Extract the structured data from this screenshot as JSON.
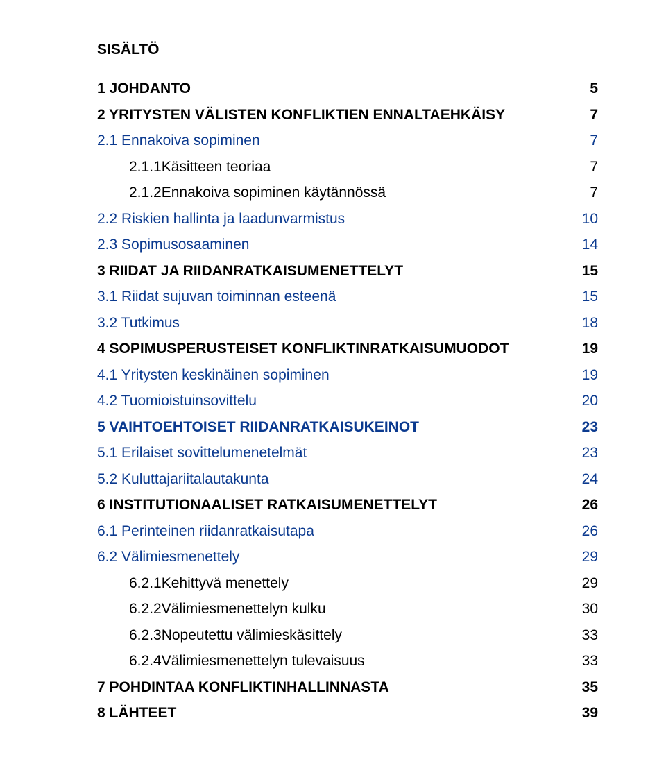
{
  "title": "SISÄLTÖ",
  "text_color": "#000000",
  "link_color": "#0b3a8f",
  "background_color": "#ffffff",
  "font_family": "Arial",
  "font_size_pt": 16,
  "entries": [
    {
      "level": 0,
      "label": "1   JOHDANTO",
      "page": "5",
      "class": "lvl0"
    },
    {
      "level": 0,
      "label": "2   YRITYSTEN VÄLISTEN KONFLIKTIEN ENNALTAEHKÄISY",
      "page": "7",
      "class": "lvl0"
    },
    {
      "level": 1,
      "label": "2.1 Ennakoiva sopiminen",
      "page": "7",
      "class": "lvl1 blue"
    },
    {
      "level": 2,
      "label": "2.1.1Käsitteen teoriaa",
      "page": "7",
      "class": "lvl2"
    },
    {
      "level": 2,
      "label": "2.1.2Ennakoiva sopiminen käytännössä",
      "page": "7",
      "class": "lvl2"
    },
    {
      "level": 1,
      "label": "2.2 Riskien hallinta ja laadunvarmistus",
      "page": "10",
      "class": "lvl1 blue"
    },
    {
      "level": 1,
      "label": "2.3 Sopimusosaaminen",
      "page": "14",
      "class": "lvl1 blue"
    },
    {
      "level": 0,
      "label": "3   RIIDAT JA RIIDANRATKAISUMENETTELYT",
      "page": "15",
      "class": "lvl0"
    },
    {
      "level": 1,
      "label": "3.1 Riidat sujuvan toiminnan esteenä",
      "page": "15",
      "class": "lvl1 blue"
    },
    {
      "level": 1,
      "label": "3.2 Tutkimus",
      "page": "18",
      "class": "lvl1 blue"
    },
    {
      "level": 0,
      "label": "4   SOPIMUSPERUSTEISET KONFLIKTINRATKAISUMUODOT",
      "page": "19",
      "class": "lvl0"
    },
    {
      "level": 1,
      "label": "4.1 Yritysten keskinäinen sopiminen",
      "page": "19",
      "class": "lvl1 blue"
    },
    {
      "level": 1,
      "label": "4.2 Tuomioistuinsovittelu",
      "page": "20",
      "class": "lvl1 blue"
    },
    {
      "level": 0,
      "label": "5   VAIHTOEHTOISET RIIDANRATKAISUKEINOT",
      "page": "23",
      "class": "lvl0 blue-bold"
    },
    {
      "level": 1,
      "label": "5.1 Erilaiset sovittelumenetelmät",
      "page": "23",
      "class": "lvl1 blue"
    },
    {
      "level": 1,
      "label": "5.2 Kuluttajariitalautakunta",
      "page": "24",
      "class": "lvl1 blue"
    },
    {
      "level": 0,
      "label": "6   INSTITUTIONAALISET RATKAISUMENETTELYT",
      "page": "26",
      "class": "lvl0"
    },
    {
      "level": 1,
      "label": "6.1 Perinteinen riidanratkaisutapa",
      "page": "26",
      "class": "lvl1 blue"
    },
    {
      "level": 1,
      "label": "6.2 Välimiesmenettely",
      "page": "29",
      "class": "lvl1 blue"
    },
    {
      "level": 2,
      "label": "6.2.1Kehittyvä menettely",
      "page": "29",
      "class": "lvl2"
    },
    {
      "level": 2,
      "label": "6.2.2Välimiesmenettelyn kulku",
      "page": "30",
      "class": "lvl2"
    },
    {
      "level": 2,
      "label": "6.2.3Nopeutettu välimieskäsittely",
      "page": "33",
      "class": "lvl2"
    },
    {
      "level": 2,
      "label": "6.2.4Välimiesmenettelyn tulevaisuus",
      "page": "33",
      "class": "lvl2"
    },
    {
      "level": 0,
      "label": "7   POHDINTAA KONFLIKTINHALLINNASTA",
      "page": "35",
      "class": "lvl0"
    },
    {
      "level": 0,
      "label": "8   LÄHTEET",
      "page": "39",
      "class": "lvl0"
    }
  ]
}
